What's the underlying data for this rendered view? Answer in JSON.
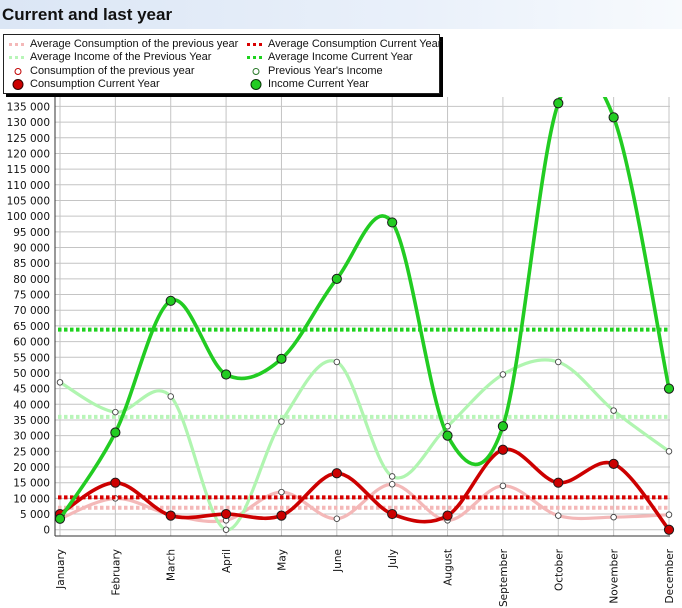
{
  "window": {
    "title": "Current and last year"
  },
  "chart_data": {
    "type": "line",
    "title": "Current and last year",
    "xlabel": "",
    "ylabel": "",
    "categories": [
      "January",
      "February",
      "March",
      "April",
      "May",
      "June",
      "July",
      "August",
      "September",
      "October",
      "November",
      "December"
    ],
    "ylim": [
      -2000,
      138000
    ],
    "yticks": [
      0,
      5000,
      10000,
      15000,
      20000,
      25000,
      30000,
      35000,
      40000,
      45000,
      50000,
      55000,
      60000,
      65000,
      70000,
      75000,
      80000,
      85000,
      90000,
      95000,
      100000,
      105000,
      110000,
      115000,
      120000,
      125000,
      130000,
      135000
    ],
    "ytick_labels": [
      "0",
      "5 000",
      "10 000",
      "15 000",
      "20 000",
      "25 000",
      "30 000",
      "35 000",
      "40 000",
      "45 000",
      "50 000",
      "55 000",
      "60 000",
      "65 000",
      "70 000",
      "75 000",
      "80 000",
      "85 000",
      "90 000",
      "95 000",
      "100 000",
      "105 000",
      "110 000",
      "115 000",
      "120 000",
      "125 000",
      "130 000",
      "135 000"
    ],
    "grid": true,
    "legend_position": "top-left",
    "series": [
      {
        "name": "Average Consumption of the previous year",
        "kind": "average",
        "color": "#f4b8b8",
        "values": [
          7000,
          7000,
          7000,
          7000,
          7000,
          7000,
          7000,
          7000,
          7000,
          7000,
          7000,
          7000
        ]
      },
      {
        "name": "Average Consumption Current Year",
        "kind": "average",
        "color": "#d80000",
        "values": [
          10300,
          10300,
          10300,
          10300,
          10300,
          10300,
          10300,
          10300,
          10300,
          10300,
          10300,
          10300
        ]
      },
      {
        "name": "Average Income of the Previous Year",
        "kind": "average",
        "color": "#b8f5b8",
        "values": [
          36000,
          36000,
          36000,
          36000,
          36000,
          36000,
          36000,
          36000,
          36000,
          36000,
          36000,
          36000
        ]
      },
      {
        "name": "Average Income Current Year",
        "kind": "average",
        "color": "#1ed21e",
        "values": [
          63800,
          63800,
          63800,
          63800,
          63800,
          63800,
          63800,
          63800,
          63800,
          63800,
          63800,
          63800
        ]
      },
      {
        "name": "Consumption of the previous year",
        "kind": "line",
        "color": "#f4b8b8",
        "marker": "small",
        "values": [
          3500,
          10000,
          4800,
          3000,
          12000,
          3500,
          14500,
          3000,
          14000,
          4500,
          4000,
          4800
        ]
      },
      {
        "name": "Previous Year's Income",
        "kind": "line",
        "color": "#b0f5b0",
        "marker": "small",
        "values": [
          47000,
          37500,
          42500,
          0,
          34500,
          53500,
          17000,
          33000,
          49500,
          53500,
          38000,
          25000
        ]
      },
      {
        "name": "Consumption Current Year",
        "kind": "line",
        "color": "#cc0000",
        "marker": "large",
        "values": [
          5000,
          15000,
          4500,
          5000,
          4500,
          18000,
          5000,
          4500,
          25500,
          15000,
          21000,
          0
        ]
      },
      {
        "name": "Income Current Year",
        "kind": "line",
        "color": "#22cc22",
        "marker": "large",
        "values": [
          3500,
          31000,
          73000,
          49500,
          54500,
          80000,
          98000,
          30000,
          33000,
          136000,
          131500,
          45000
        ]
      }
    ]
  }
}
